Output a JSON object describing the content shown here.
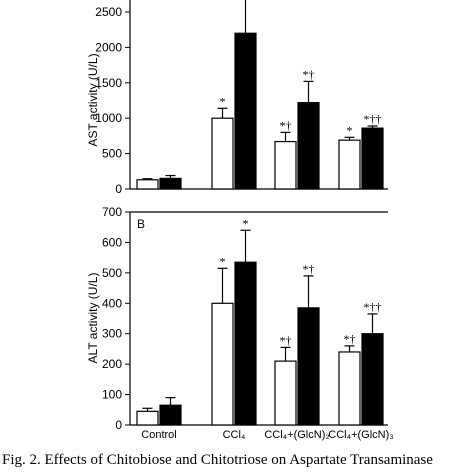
{
  "chart_data": [
    {
      "type": "bar",
      "panel_label": "",
      "ylabel": "AST activity (U/L)",
      "ylim": [
        0,
        2500
      ],
      "yticks": [
        0,
        500,
        1000,
        1500,
        2000,
        2500
      ],
      "categories": [
        "Control",
        "CCl₄",
        "CCl₄+(GlcN)₂",
        "CCl₄+(GlcN)₃"
      ],
      "series": [
        {
          "color": "#ffffff",
          "values": [
            130,
            1000,
            670,
            690
          ],
          "errors": [
            15,
            140,
            130,
            40
          ]
        },
        {
          "color": "#000000",
          "values": [
            150,
            2200,
            1220,
            860
          ],
          "errors": [
            40,
            600,
            300,
            30
          ]
        }
      ],
      "annotations": [
        "",
        "*",
        "*†",
        "*"
      ],
      "annotations_black": [
        "",
        "",
        "*†",
        "*††"
      ]
    },
    {
      "type": "bar",
      "panel_label": "B",
      "ylabel": "ALT activity (U/L)",
      "ylim": [
        0,
        700
      ],
      "yticks": [
        0,
        100,
        200,
        300,
        400,
        500,
        600,
        700
      ],
      "categories": [
        "Control",
        "CCl₄",
        "CCl₄+(GlcN)₂",
        "CCl₄+(GlcN)₃"
      ],
      "series": [
        {
          "color": "#ffffff",
          "values": [
            45,
            400,
            210,
            240
          ],
          "errors": [
            10,
            115,
            45,
            20
          ]
        },
        {
          "color": "#000000",
          "values": [
            65,
            535,
            385,
            300
          ],
          "errors": [
            25,
            105,
            105,
            65
          ]
        }
      ],
      "annotations": [
        "",
        "*",
        "*†",
        "*†"
      ],
      "annotations_black": [
        "",
        "*",
        "*†",
        "*††"
      ]
    }
  ],
  "caption": "Fig. 2.   Effects of Chitobiose and Chitotriose on Aspartate Transaminase"
}
